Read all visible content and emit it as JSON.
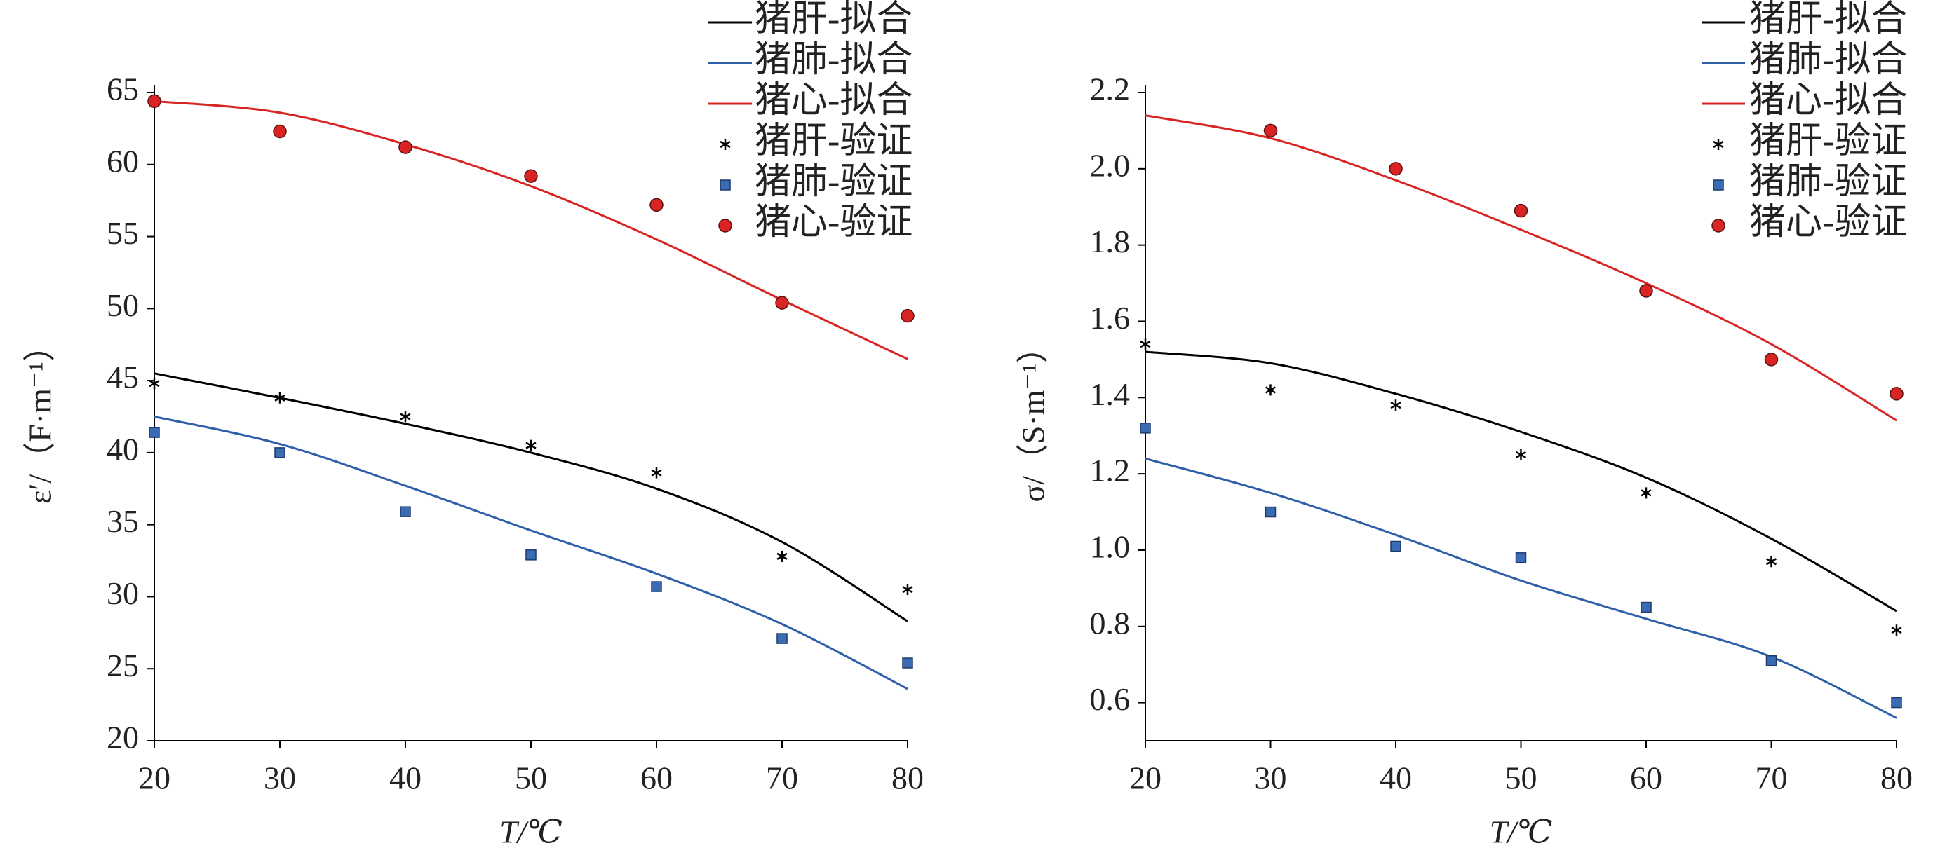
{
  "chart_data": [
    {
      "type": "line",
      "xlabel": "T/℃",
      "ylabel": "ε′/（F·m⁻¹）",
      "x": [
        20,
        30,
        40,
        50,
        60,
        70,
        80
      ],
      "xlim": [
        20,
        80
      ],
      "xticks": [
        20,
        30,
        40,
        50,
        60,
        70,
        80
      ],
      "ylim": [
        20,
        65
      ],
      "yticks": [
        20,
        25,
        30,
        35,
        40,
        45,
        50,
        55,
        60,
        65
      ],
      "series": [
        {
          "name": "猪肝-拟合",
          "color": "#000000",
          "marker": "none",
          "values": [
            45.5,
            43.8,
            42.0,
            40.0,
            37.5,
            33.8,
            28.3
          ]
        },
        {
          "name": "猪肺-拟合",
          "color": "#2e5fa8",
          "marker": "none",
          "values": [
            42.5,
            40.6,
            37.7,
            34.6,
            31.6,
            28.1,
            23.6
          ]
        },
        {
          "name": "猪心-拟合",
          "color": "#d92424",
          "marker": "none",
          "values": [
            64.4,
            63.6,
            61.4,
            58.5,
            54.8,
            50.6,
            46.5
          ]
        },
        {
          "name": "猪肝-验证",
          "color": "#000000",
          "marker": "star",
          "values": [
            44.8,
            43.8,
            42.5,
            40.5,
            38.6,
            32.8,
            30.5
          ]
        },
        {
          "name": "猪肺-验证",
          "color": "#3a6cb5",
          "marker": "square",
          "values": [
            41.4,
            40.0,
            35.9,
            32.9,
            30.7,
            27.1,
            25.4
          ]
        },
        {
          "name": "猪心-验证",
          "color": "#d92424",
          "marker": "circle",
          "values": [
            64.4,
            62.3,
            61.2,
            59.2,
            57.2,
            50.4,
            49.5
          ]
        }
      ]
    },
    {
      "type": "line",
      "xlabel": "T/℃",
      "ylabel": "σ/（S·m⁻¹）",
      "x": [
        20,
        30,
        40,
        50,
        60,
        70,
        80
      ],
      "xlim": [
        20,
        80
      ],
      "xticks": [
        20,
        30,
        40,
        50,
        60,
        70,
        80
      ],
      "ylim": [
        0.5,
        2.2
      ],
      "yticks": [
        0.6,
        0.8,
        {
          "value": 1,
          "label": "1.0"
        },
        1.2,
        1.4,
        1.6,
        1.8,
        {
          "value": 2,
          "label": "2.0"
        },
        2.2
      ],
      "series": [
        {
          "name": "猪肝-拟合",
          "color": "#000000",
          "marker": "none",
          "values": [
            1.52,
            1.49,
            1.41,
            1.31,
            1.19,
            1.03,
            0.84
          ]
        },
        {
          "name": "猪肺-拟合",
          "color": "#2e5fa8",
          "marker": "none",
          "values": [
            1.24,
            1.15,
            1.04,
            0.92,
            0.82,
            0.72,
            0.56
          ]
        },
        {
          "name": "猪心-拟合",
          "color": "#d92424",
          "marker": "none",
          "values": [
            2.14,
            2.08,
            1.97,
            1.84,
            1.7,
            1.54,
            1.34
          ]
        },
        {
          "name": "猪肝-验证",
          "color": "#000000",
          "marker": "star",
          "values": [
            1.54,
            1.42,
            1.38,
            1.25,
            1.15,
            0.97,
            0.79
          ]
        },
        {
          "name": "猪肺-验证",
          "color": "#3a6cb5",
          "marker": "square",
          "values": [
            1.32,
            1.1,
            1.01,
            0.98,
            0.85,
            0.71,
            0.6
          ]
        },
        {
          "name": "猪心-验证",
          "color": "#d92424",
          "marker": "circle",
          "values": [
            null,
            2.1,
            2.0,
            1.89,
            1.68,
            1.5,
            1.41
          ]
        }
      ]
    }
  ]
}
